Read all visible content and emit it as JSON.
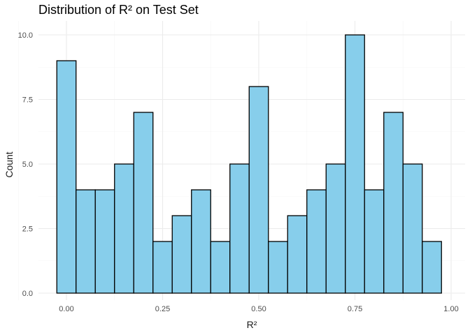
{
  "chart_data": {
    "type": "bar",
    "title": "Distribution of R² on Test Set",
    "xlabel": "R²",
    "ylabel": "Count",
    "bin_width": 0.05,
    "bin_centers": [
      0.0,
      0.05,
      0.1,
      0.15,
      0.2,
      0.25,
      0.3,
      0.35,
      0.4,
      0.45,
      0.5,
      0.55,
      0.6,
      0.65,
      0.7,
      0.75,
      0.8,
      0.85,
      0.9,
      0.95
    ],
    "values": [
      9,
      4,
      4,
      5,
      7,
      2,
      3,
      4,
      2,
      5,
      8,
      2,
      3,
      4,
      5,
      10,
      4,
      7,
      5,
      2
    ],
    "xlim": [
      -0.05,
      1.0
    ],
    "ylim": [
      0,
      10.0
    ],
    "x_ticks": [
      0.0,
      0.25,
      0.5,
      0.75,
      1.0
    ],
    "x_tick_labels": [
      "0.00",
      "0.25",
      "0.50",
      "0.75",
      "1.00"
    ],
    "y_ticks": [
      0.0,
      2.5,
      5.0,
      7.5,
      10.0
    ],
    "y_tick_labels": [
      "0.0",
      "2.5",
      "5.0",
      "7.5",
      "10.0"
    ],
    "bar_fill": "#87CEEB",
    "bar_stroke": "#000000",
    "grid": true,
    "legend": "none"
  }
}
